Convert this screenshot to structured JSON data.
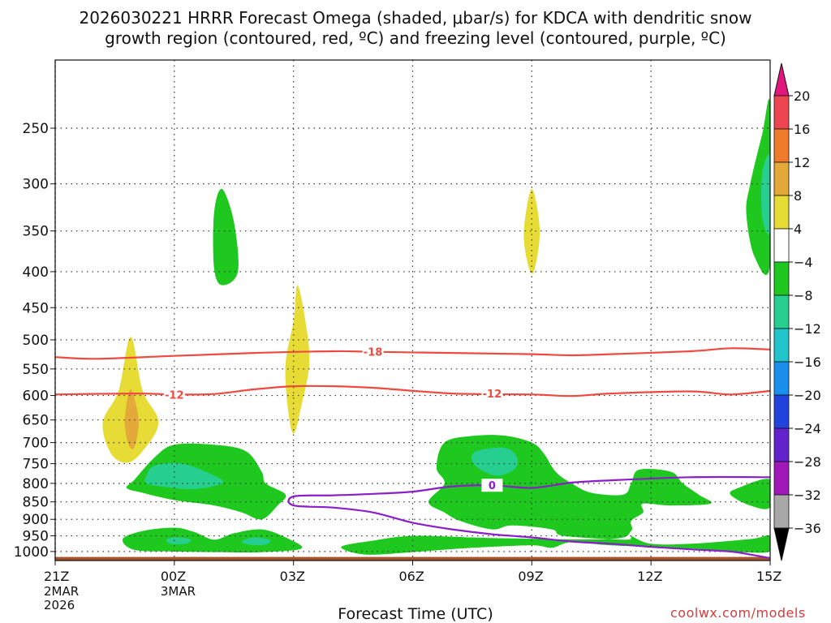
{
  "header": {
    "title_line1": "2026030221 HRRR Forecast Omega (shaded, μbar/s) for KDCA with dendritic snow",
    "title_line2": "growth region (contoured, red, ºC) and freezing level (contoured, purple, ºC)"
  },
  "footer": {
    "xlabel": "Forecast Time (UTC)",
    "credit": "coolwx.com/models"
  },
  "chart_data": {
    "type": "heatmap",
    "title": "2026030221 HRRR Forecast Omega (shaded, μbar/s) for KDCA with dendritic snow growth region (contoured, red, ºC) and freezing level (contoured, purple, ºC)",
    "xlabel": "Forecast Time (UTC)",
    "ylabel": "",
    "x_hours": [
      0,
      3,
      6,
      9,
      12,
      15,
      18
    ],
    "x_tick_labels": [
      "21Z",
      "00Z",
      "03Z",
      "06Z",
      "09Z",
      "12Z",
      "15Z"
    ],
    "x_tick_sublabels": [
      [
        "2MAR",
        "2026"
      ],
      [
        "3MAR"
      ],
      [],
      [],
      [],
      [],
      []
    ],
    "xlim_hours": [
      0,
      18
    ],
    "y_levels": [
      250,
      300,
      350,
      400,
      450,
      500,
      550,
      600,
      650,
      700,
      750,
      800,
      850,
      900,
      950,
      1000
    ],
    "y_tick_labels": [
      "250",
      "300",
      "350",
      "400",
      "450",
      "500",
      "550",
      "600",
      "650",
      "700",
      "750",
      "800",
      "850",
      "900",
      "950",
      "1000"
    ],
    "ylim_hPa": [
      200,
      1030
    ],
    "grid": true,
    "colorbar": {
      "ticks": [
        "20",
        "16",
        "12",
        "8",
        "4",
        "−4",
        "−8",
        "−12",
        "−16",
        "−20",
        "−24",
        "−28",
        "−32",
        "−36"
      ],
      "bands": [
        {
          "range": [
            16,
            20
          ],
          "color": "#ee4552"
        },
        {
          "range": [
            12,
            16
          ],
          "color": "#ee7a2a"
        },
        {
          "range": [
            8,
            12
          ],
          "color": "#e3aa3a"
        },
        {
          "range": [
            4,
            8
          ],
          "color": "#e7dc35"
        },
        {
          "range": [
            -4,
            4
          ],
          "color": "#ffffff"
        },
        {
          "range": [
            -8,
            -4
          ],
          "color": "#1ec81e"
        },
        {
          "range": [
            -12,
            -8
          ],
          "color": "#26cf90"
        },
        {
          "range": [
            -16,
            -12
          ],
          "color": "#22c4cc"
        },
        {
          "range": [
            -20,
            -16
          ],
          "color": "#1a90ee"
        },
        {
          "range": [
            -24,
            -20
          ],
          "color": "#2244dd"
        },
        {
          "range": [
            -28,
            -24
          ],
          "color": "#6222cc"
        },
        {
          "range": [
            -32,
            -28
          ],
          "color": "#a018b8"
        },
        {
          "range": [
            -36,
            -32
          ],
          "color": "#a8a8a8"
        }
      ],
      "over_color": "#e0187c",
      "under_color": "#000000"
    },
    "contours": [
      {
        "name": "dendritic-top",
        "label": "-18",
        "color": "#ee4a40",
        "label_hour": 8.0,
        "points": [
          [
            0,
            529
          ],
          [
            1,
            532
          ],
          [
            3,
            527
          ],
          [
            5,
            522
          ],
          [
            7,
            519
          ],
          [
            8,
            520
          ],
          [
            10,
            522
          ],
          [
            12,
            524
          ],
          [
            13,
            526
          ],
          [
            14,
            524
          ],
          [
            16,
            519
          ],
          [
            17,
            514
          ],
          [
            18,
            516
          ]
        ]
      },
      {
        "name": "dendritic-bottom",
        "label": "-12",
        "color": "#ee4a40",
        "label_hour": 3.0,
        "label_hour_2": 11.0,
        "points": [
          [
            0,
            598
          ],
          [
            2,
            596
          ],
          [
            3,
            598
          ],
          [
            4,
            597
          ],
          [
            5,
            588
          ],
          [
            6,
            582
          ],
          [
            7,
            582
          ],
          [
            8,
            585
          ],
          [
            10,
            596
          ],
          [
            12,
            598
          ],
          [
            13,
            601
          ],
          [
            14,
            596
          ],
          [
            16,
            592
          ],
          [
            17,
            598
          ],
          [
            18,
            591
          ]
        ]
      },
      {
        "name": "freezing-level",
        "label": "0",
        "color": "#8a1ec8",
        "label_hour": 11.0,
        "points": [
          [
            18,
            784
          ],
          [
            16,
            784
          ],
          [
            14,
            792
          ],
          [
            13,
            798
          ],
          [
            12,
            812
          ],
          [
            11,
            805
          ],
          [
            10,
            808
          ],
          [
            9,
            822
          ],
          [
            8,
            828
          ],
          [
            7,
            832
          ],
          [
            6,
            835
          ],
          [
            6,
            860
          ],
          [
            7,
            866
          ],
          [
            8,
            880
          ],
          [
            9,
            910
          ],
          [
            10,
            930
          ],
          [
            11,
            945
          ],
          [
            12,
            955
          ],
          [
            13,
            968
          ],
          [
            14,
            975
          ],
          [
            15,
            985
          ],
          [
            16,
            993
          ],
          [
            17,
            1000
          ],
          [
            17.5,
            1010
          ],
          [
            18,
            1022
          ]
        ]
      }
    ],
    "omega_regions": [
      {
        "value": -6,
        "points": [
          [
            4.2,
            305
          ],
          [
            4.5,
            340
          ],
          [
            4.6,
            400
          ],
          [
            4.2,
            418
          ],
          [
            4.0,
            395
          ],
          [
            4.0,
            330
          ]
        ]
      },
      {
        "value": -6,
        "points": [
          [
            2.0,
            790
          ],
          [
            2.5,
            735
          ],
          [
            3.0,
            705
          ],
          [
            4.0,
            705
          ],
          [
            4.8,
            720
          ],
          [
            5.2,
            770
          ],
          [
            5.3,
            800
          ],
          [
            5.8,
            830
          ],
          [
            5.6,
            860
          ],
          [
            5.2,
            900
          ],
          [
            4.7,
            880
          ],
          [
            4.0,
            860
          ],
          [
            3.0,
            845
          ],
          [
            2.2,
            825
          ],
          [
            1.8,
            812
          ]
        ]
      },
      {
        "value": -10,
        "points": [
          [
            2.3,
            780
          ],
          [
            2.5,
            755
          ],
          [
            3.2,
            750
          ],
          [
            4.0,
            780
          ],
          [
            4.2,
            800
          ],
          [
            3.5,
            815
          ],
          [
            2.8,
            810
          ],
          [
            2.3,
            800
          ]
        ]
      },
      {
        "value": -6,
        "points": [
          [
            1.7,
            960
          ],
          [
            2.2,
            935
          ],
          [
            3.0,
            925
          ],
          [
            3.5,
            938
          ],
          [
            4.0,
            962
          ],
          [
            4.5,
            942
          ],
          [
            5.2,
            930
          ],
          [
            5.8,
            955
          ],
          [
            6.2,
            990
          ],
          [
            5.2,
            1002
          ],
          [
            4.0,
            1002
          ],
          [
            3.0,
            1000
          ],
          [
            2.0,
            995
          ]
        ]
      },
      {
        "value": -10,
        "points": [
          [
            2.8,
            962
          ],
          [
            3.0,
            955
          ],
          [
            3.4,
            960
          ],
          [
            3.3,
            975
          ],
          [
            2.9,
            975
          ]
        ]
      },
      {
        "value": -10,
        "points": [
          [
            4.7,
            968
          ],
          [
            5.0,
            955
          ],
          [
            5.4,
            962
          ],
          [
            5.3,
            978
          ],
          [
            4.9,
            978
          ]
        ]
      },
      {
        "value": -6,
        "points": [
          [
            9.8,
            700
          ],
          [
            10.5,
            685
          ],
          [
            11.3,
            684
          ],
          [
            12.0,
            700
          ],
          [
            12.3,
            725
          ],
          [
            12.6,
            770
          ],
          [
            13.0,
            800
          ],
          [
            13.5,
            825
          ],
          [
            14.3,
            830
          ],
          [
            14.5,
            800
          ],
          [
            14.7,
            765
          ],
          [
            15.5,
            770
          ],
          [
            15.8,
            800
          ],
          [
            16.2,
            830
          ],
          [
            16.5,
            855
          ],
          [
            15.5,
            860
          ],
          [
            14.8,
            855
          ],
          [
            14.8,
            880
          ],
          [
            14.5,
            905
          ],
          [
            14.5,
            935
          ],
          [
            14.0,
            960
          ],
          [
            11.5,
            958
          ],
          [
            10.5,
            955
          ],
          [
            9.0,
            950
          ],
          [
            8.0,
            965
          ],
          [
            7.2,
            985
          ],
          [
            7.8,
            1010
          ],
          [
            9.0,
            1002
          ],
          [
            10.5,
            988
          ],
          [
            12.0,
            980
          ],
          [
            12.5,
            988
          ],
          [
            13.0,
            970
          ],
          [
            14.0,
            980
          ],
          [
            16.0,
            990
          ],
          [
            17.0,
            1000
          ],
          [
            18,
            1000
          ],
          [
            18,
            950
          ],
          [
            17.5,
            960
          ],
          [
            16,
            975
          ],
          [
            15,
            975
          ],
          [
            14.5,
            950
          ],
          [
            14.5,
            955
          ],
          [
            14.3,
            962
          ],
          [
            12.8,
            950
          ],
          [
            12.5,
            930
          ],
          [
            11.5,
            918
          ],
          [
            11.0,
            930
          ],
          [
            10.2,
            905
          ],
          [
            9.8,
            880
          ],
          [
            9.4,
            850
          ],
          [
            9.8,
            800
          ],
          [
            9.6,
            760
          ]
        ]
      },
      {
        "value": -10,
        "points": [
          [
            10.6,
            720
          ],
          [
            11.3,
            712
          ],
          [
            11.6,
            730
          ],
          [
            11.6,
            760
          ],
          [
            11.2,
            780
          ],
          [
            10.8,
            770
          ],
          [
            10.5,
            745
          ]
        ]
      },
      {
        "value": -6,
        "points": [
          [
            17.2,
            812
          ],
          [
            18,
            790
          ],
          [
            18,
            865
          ],
          [
            17.5,
            860
          ],
          [
            17.0,
            830
          ]
        ]
      },
      {
        "value": -6,
        "points": [
          [
            17.5,
            300
          ],
          [
            17.8,
            255
          ],
          [
            18,
            232
          ],
          [
            18,
            390
          ],
          [
            17.6,
            380
          ],
          [
            17.4,
            330
          ]
        ]
      },
      {
        "value": -10,
        "points": [
          [
            17.8,
            290
          ],
          [
            18,
            275
          ],
          [
            18,
            350
          ],
          [
            17.8,
            335
          ]
        ]
      },
      {
        "value": 6,
        "points": [
          [
            1.2,
            655
          ],
          [
            1.6,
            590
          ],
          [
            1.9,
            495
          ],
          [
            2.2,
            590
          ],
          [
            2.6,
            655
          ],
          [
            2.2,
            720
          ],
          [
            1.8,
            748
          ],
          [
            1.4,
            725
          ]
        ]
      },
      {
        "value": 10,
        "points": [
          [
            1.75,
            650
          ],
          [
            1.9,
            588
          ],
          [
            2.1,
            650
          ],
          [
            2.0,
            710
          ],
          [
            1.85,
            705
          ]
        ]
      },
      {
        "value": 6,
        "points": [
          [
            5.8,
            540
          ],
          [
            6.0,
            470
          ],
          [
            6.1,
            418
          ],
          [
            6.3,
            470
          ],
          [
            6.4,
            540
          ],
          [
            6.2,
            620
          ],
          [
            6.0,
            680
          ],
          [
            5.85,
            620
          ]
        ]
      },
      {
        "value": 6,
        "points": [
          [
            11.8,
            350
          ],
          [
            12.0,
            305
          ],
          [
            12.2,
            350
          ],
          [
            12.05,
            400
          ],
          [
            11.9,
            390
          ]
        ]
      }
    ],
    "ground_color": "#a5522a"
  }
}
